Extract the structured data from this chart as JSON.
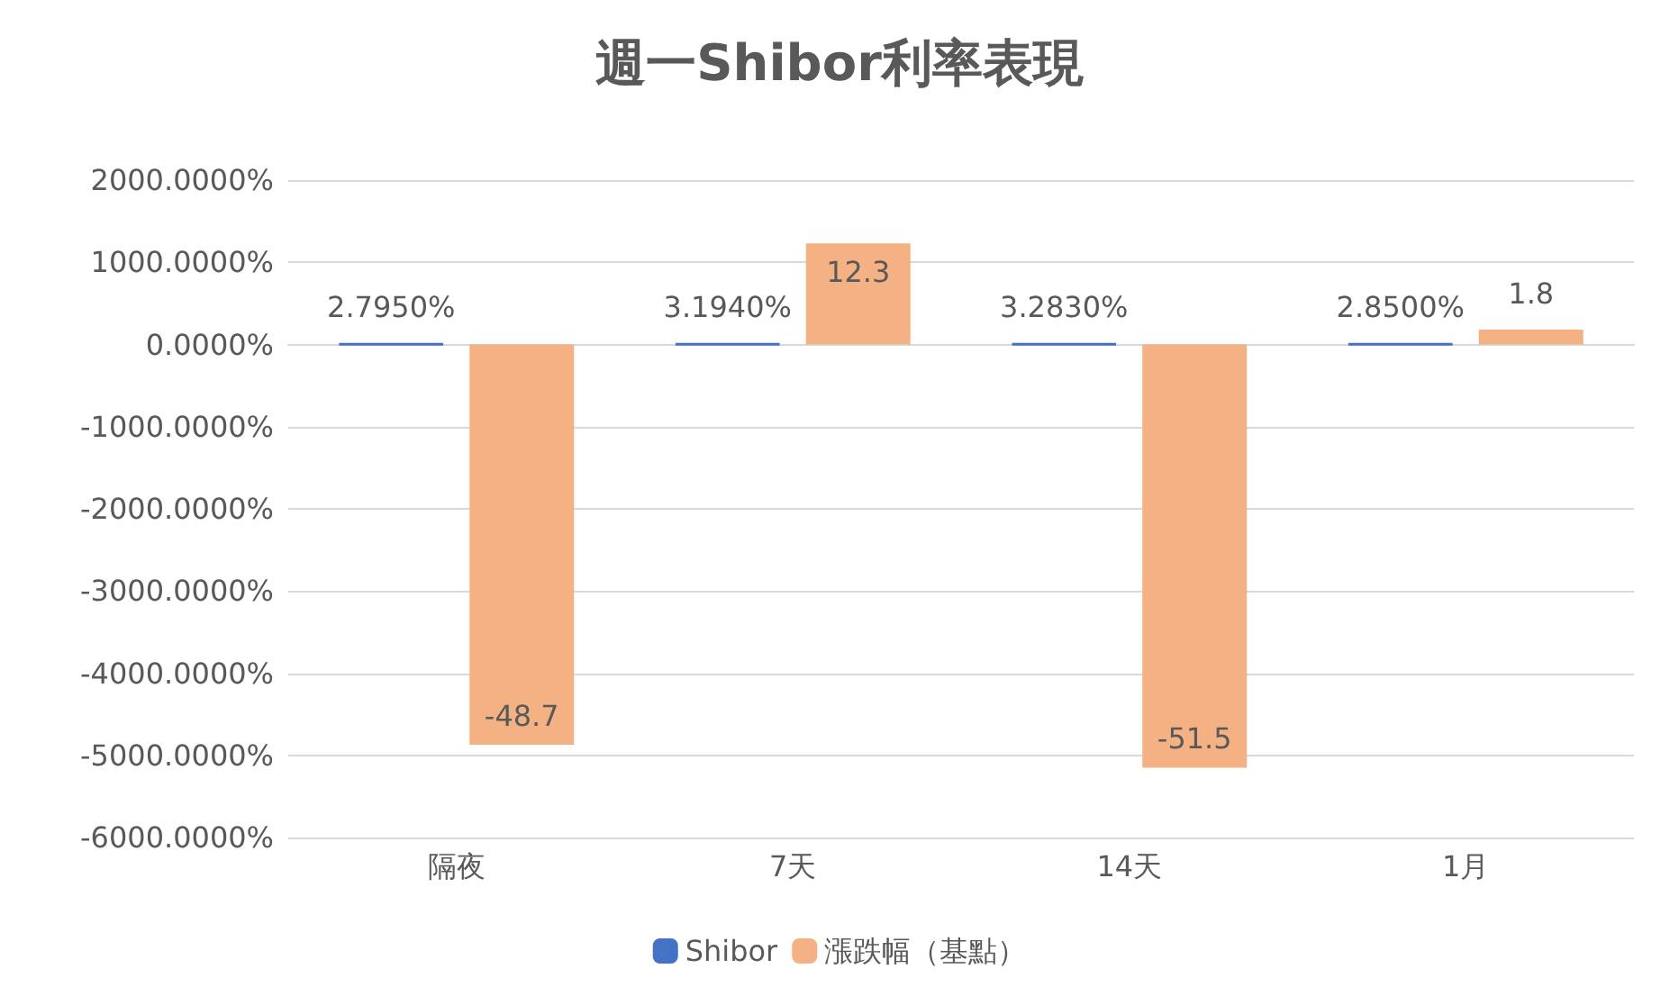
{
  "chart_data": {
    "type": "bar",
    "title": "週一Shibor利率表現",
    "categories": [
      "隔夜",
      "7天",
      "14天",
      "1月"
    ],
    "series": [
      {
        "name": "Shibor",
        "color": "#4472c4",
        "values": [
          0.02795,
          0.03194,
          0.03283,
          0.0285
        ],
        "value_labels": [
          "2.7950%",
          "3.1940%",
          "3.2830%",
          "2.8500%"
        ]
      },
      {
        "name": "漲跌幅（基點）",
        "color": "#f4b183",
        "values": [
          -48.7,
          12.3,
          -51.5,
          1.8
        ],
        "value_labels": [
          "-48.7",
          "12.3",
          "-51.5",
          "1.8"
        ]
      }
    ],
    "ylim": [
      -60,
      20
    ],
    "yticks": [
      {
        "value": -60,
        "label": "-6000.0000%"
      },
      {
        "value": -50,
        "label": "-5000.0000%"
      },
      {
        "value": -40,
        "label": "-4000.0000%"
      },
      {
        "value": -30,
        "label": "-3000.0000%"
      },
      {
        "value": -20,
        "label": "-2000.0000%"
      },
      {
        "value": -10,
        "label": "-1000.0000%"
      },
      {
        "value": 0,
        "label": "0.0000%"
      },
      {
        "value": 10,
        "label": "1000.0000%"
      },
      {
        "value": 20,
        "label": "2000.0000%"
      }
    ],
    "grid": "y",
    "legend": "bottom"
  }
}
